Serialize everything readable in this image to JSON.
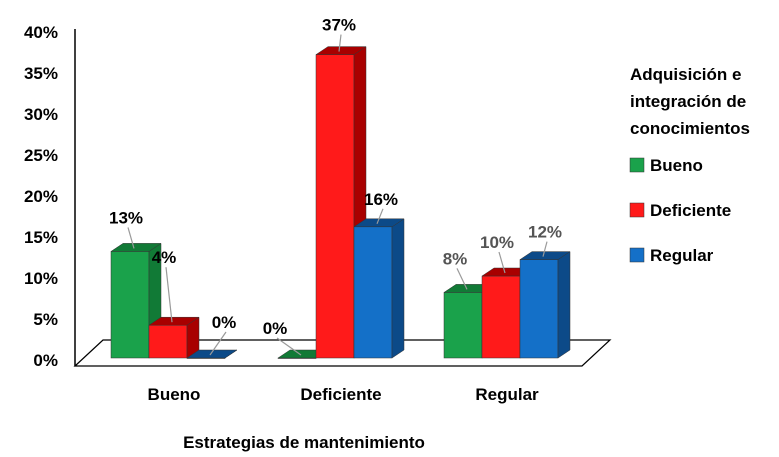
{
  "chart_data": {
    "type": "bar",
    "categories": [
      "Bueno",
      "Deficiente",
      "Regular"
    ],
    "series": [
      {
        "name": "Bueno",
        "values": [
          13,
          0,
          8
        ],
        "color": "#1aa24b",
        "side_color": "#117a36",
        "label_color": "#000000"
      },
      {
        "name": "Deficiente",
        "values": [
          4,
          37,
          10
        ],
        "color": "#ff1a1a",
        "side_color": "#a80000",
        "label_color": "#000000"
      },
      {
        "name": "Regular",
        "values": [
          0,
          16,
          12
        ],
        "color": "#1470c8",
        "side_color": "#0c4a88",
        "label_color": "#000000"
      }
    ],
    "data_labels": [
      [
        "13%",
        "4%",
        "0%"
      ],
      [
        "0%",
        "37%",
        "16%"
      ],
      [
        "8%",
        "10%",
        "12%"
      ]
    ],
    "label_colors": [
      [
        "#000000",
        "#000000",
        "#000000"
      ],
      [
        "#000000",
        "#000000",
        "#000000"
      ],
      [
        "#555555",
        "#555555",
        "#555555"
      ]
    ],
    "y_ticks": [
      "0%",
      "5%",
      "10%",
      "15%",
      "20%",
      "25%",
      "30%",
      "35%",
      "40%"
    ],
    "ylim": [
      0,
      40
    ],
    "xlabel": "Estrategias de mantenimiento",
    "ylabel": "",
    "legend": {
      "title_lines": [
        "Adquisición e",
        "integración de",
        "conocimientos"
      ],
      "entries": [
        "Bueno",
        "Deficiente",
        "Regular"
      ],
      "placement": "right"
    },
    "grid": false,
    "style": "3d-clustered"
  }
}
